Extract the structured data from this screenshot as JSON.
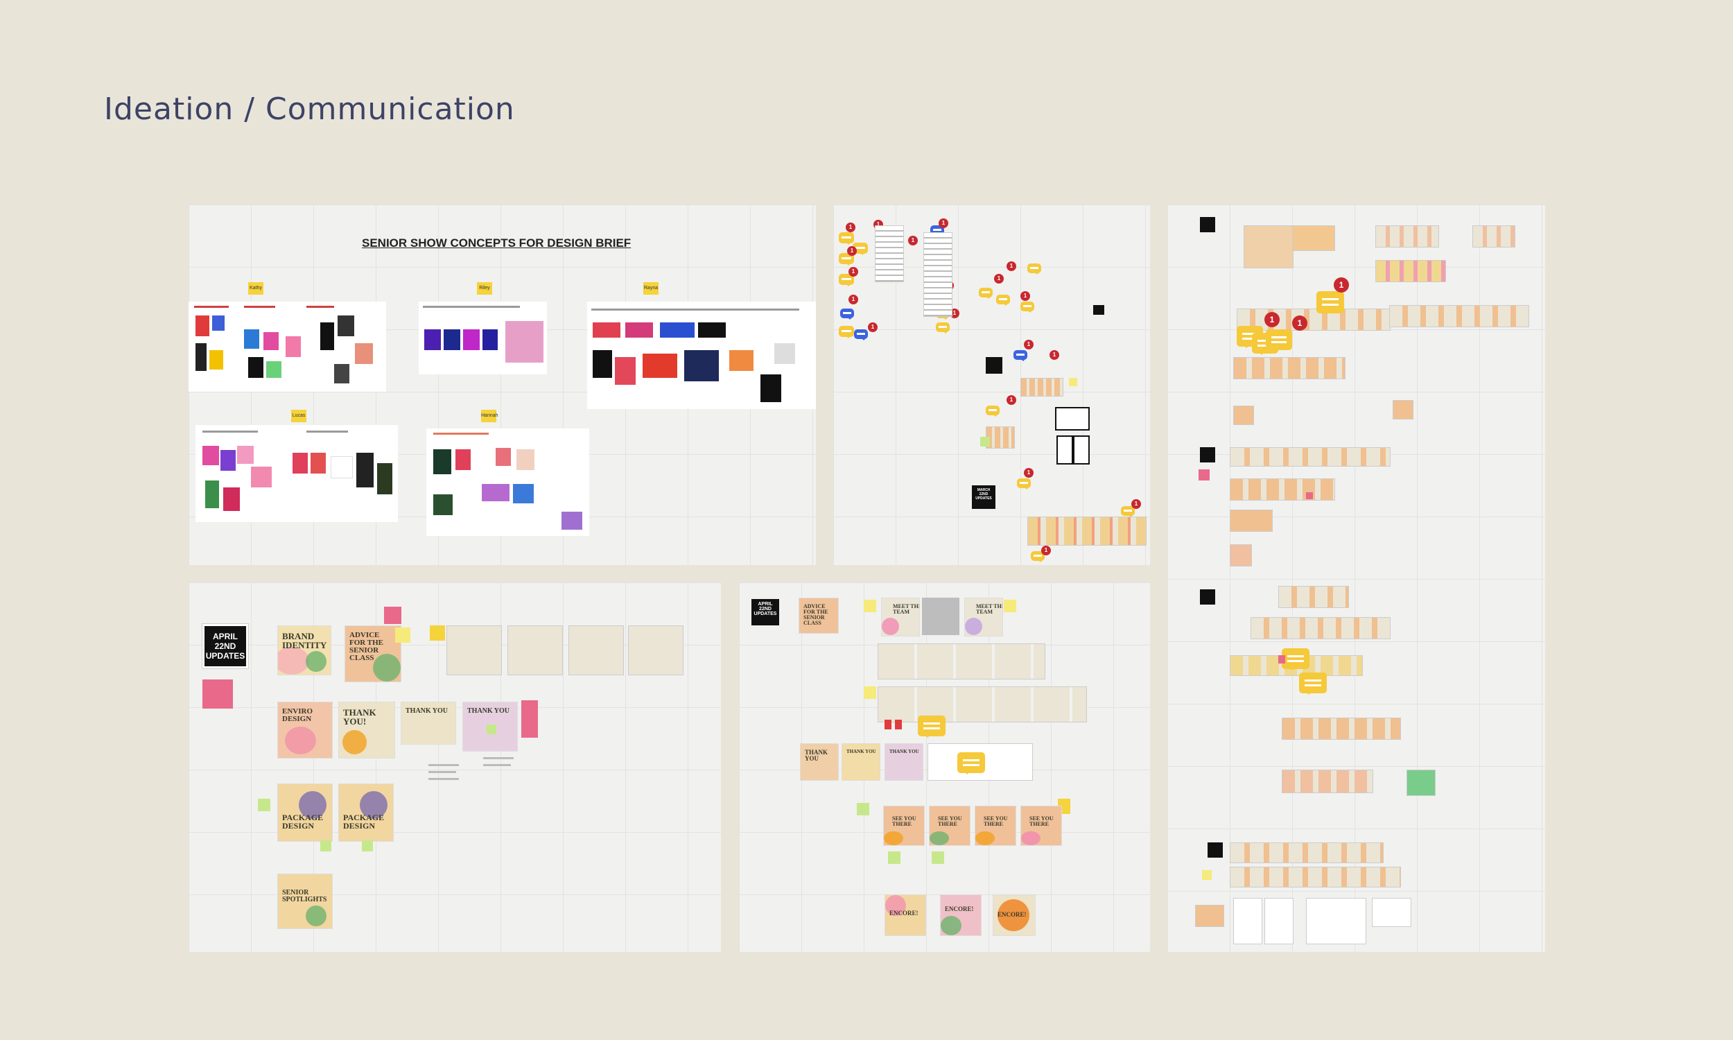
{
  "page": {
    "title": "Ideation / Communication"
  },
  "board_brief": {
    "title": "SENIOR SHOW CONCEPTS FOR DESIGN BRIEF",
    "stickies": [
      "Kathy",
      "Riley",
      "Rayna",
      "Lucas",
      "Hannah"
    ]
  },
  "board_updates": {
    "note_april": "APRIL\n22ND\nUPDATES",
    "slides": [
      "BRAND IDENTITY",
      "ADVICE FOR THE SENIOR CLASS",
      "ENVIRO DESIGN",
      "THANK YOU!",
      "THANK YOU",
      "THANK YOU",
      "PACKAGE DESIGN",
      "PACKAGE DESIGN",
      "SENIOR SPOTLIGHTS"
    ]
  },
  "board_comms": {
    "note_april": "APRIL\n22ND\nUPDATES",
    "slides": [
      "ADVICE FOR THE SENIOR CLASS",
      "MEET THE TEAM",
      "MEET THE TEAM",
      "THANK YOU",
      "THANK YOU",
      "THANK YOU",
      "SEE YOU THERE",
      "SEE YOU THERE",
      "SEE YOU THERE",
      "SEE YOU THERE",
      "ENCORE!",
      "ENCORE!",
      "ENCORE!"
    ]
  },
  "board_feedback": {
    "note": "MARCH\n22ND\nUPDATES",
    "pins": [
      "1",
      "1",
      "1",
      "1",
      "1",
      "1",
      "1",
      "1",
      "1",
      "1",
      "1",
      "1",
      "1",
      "1",
      "1",
      "1",
      "1",
      "1",
      "1"
    ]
  },
  "board_right": {
    "pins": [
      "1",
      "1",
      "1"
    ]
  },
  "colors": {
    "background": "#e8e4d8",
    "title": "#3d4266",
    "board": "#f1f1f0",
    "sticky": "#f5d33a",
    "pin": "#c8282e",
    "comment": "#f5c93a",
    "comment_blue": "#3b63e0"
  }
}
